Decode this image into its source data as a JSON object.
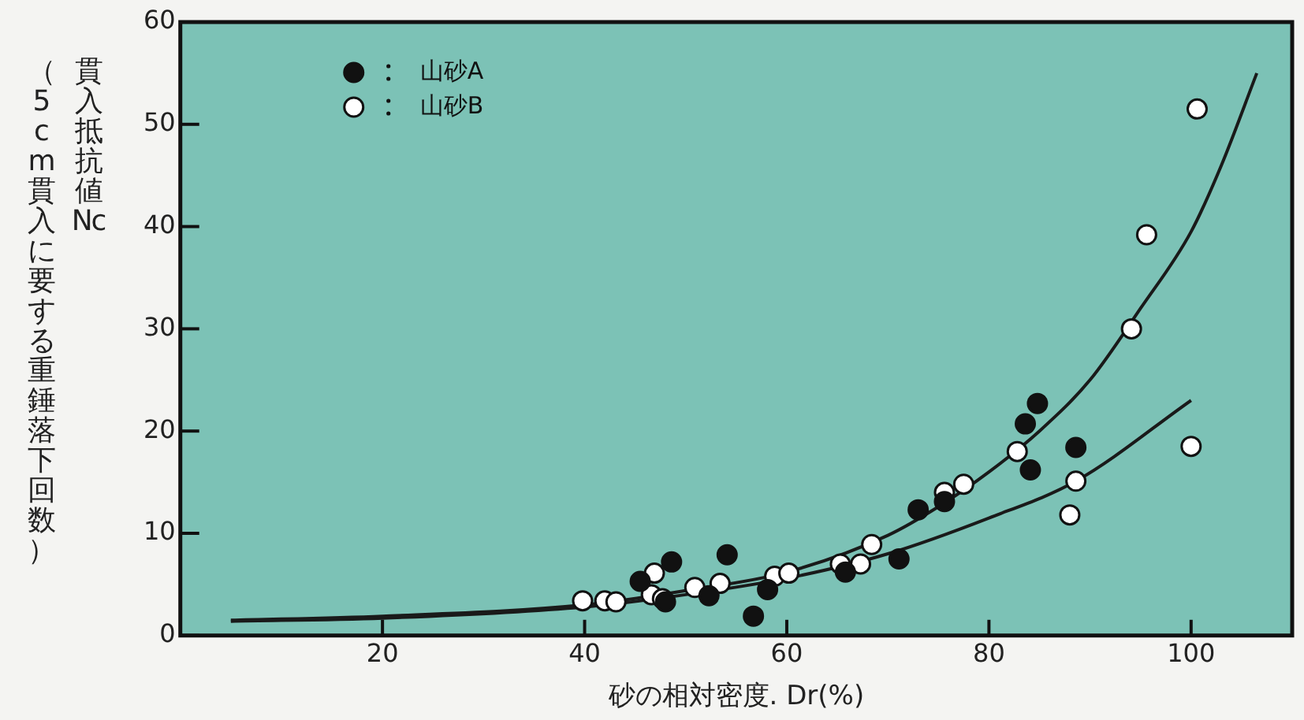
{
  "chart_data": {
    "type": "scatter",
    "xlabel": "砂の相対密度. Dr(%)",
    "ylabel": "貫入抵抗値 Nc\n（5 cm貫入に要する重錘落下回数）",
    "xlim": [
      0,
      110
    ],
    "xticks": [
      20,
      40,
      60,
      80,
      100
    ],
    "ylim": [
      0,
      60
    ],
    "yticks": [
      0,
      10,
      20,
      30,
      40,
      50,
      60
    ],
    "grid": false,
    "legend": "top left",
    "marker": "circle",
    "series": [
      {
        "name": "山砂A",
        "color": "#111111",
        "x": [
          48.6,
          45.5,
          48.0,
          52.3,
          54.1,
          56.7,
          58.1,
          65.8,
          71.1,
          73.0,
          75.6,
          84.8,
          83.6,
          88.6,
          84.1
        ],
        "values": [
          7.2,
          5.3,
          3.3,
          3.9,
          7.9,
          1.9,
          4.5,
          6.2,
          7.5,
          12.3,
          13.1,
          22.7,
          20.7,
          18.4,
          16.2
        ]
      },
      {
        "name": "山砂B",
        "color": "#ffffff",
        "x": [
          39.8,
          42.0,
          43.1,
          46.9,
          46.6,
          47.7,
          50.9,
          53.4,
          58.8,
          60.2,
          65.3,
          67.3,
          68.4,
          75.6,
          77.5,
          82.8,
          88.6,
          88.0,
          94.1,
          95.6,
          100.6,
          100.0
        ],
        "values": [
          3.4,
          3.4,
          3.3,
          6.1,
          4.0,
          3.6,
          4.7,
          5.1,
          5.8,
          6.1,
          7.0,
          7.0,
          8.9,
          14.0,
          14.8,
          18.0,
          15.1,
          11.8,
          30.0,
          39.2,
          51.5,
          18.5
        ]
      },
      {
        "type": "line",
        "color": "#1a1a1a",
        "marker": "none",
        "x": [
          5,
          20,
          40,
          50,
          60,
          70,
          75,
          80,
          85,
          90,
          95,
          100,
          103,
          106.5
        ],
        "values": [
          1.5,
          1.9,
          3.0,
          4.4,
          6.2,
          9.8,
          12.6,
          16.0,
          20.0,
          25.0,
          32.0,
          39.5,
          46.0,
          55.0
        ]
      },
      {
        "type": "line",
        "color": "#1a1a1a",
        "marker": "none",
        "x": [
          5,
          20,
          40,
          50,
          60,
          70,
          80,
          88.6,
          100
        ],
        "values": [
          1.4,
          1.7,
          2.8,
          4.0,
          5.6,
          8.0,
          11.5,
          15.1,
          23.0
        ]
      }
    ]
  }
}
